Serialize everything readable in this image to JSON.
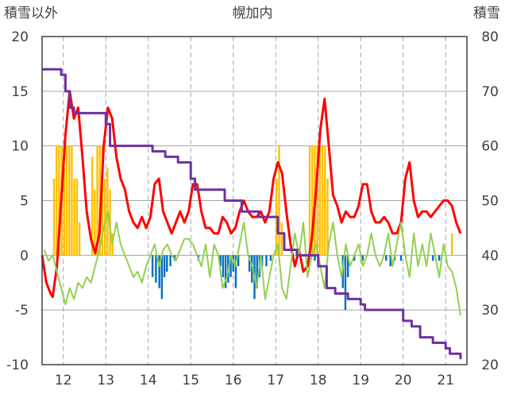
{
  "chart_data": {
    "type": "line",
    "title": "幌加内",
    "left_axis": {
      "label": "積雪以外",
      "min": -10,
      "max": 20,
      "ticks": [
        20,
        15,
        10,
        5,
        0,
        -5,
        -10
      ]
    },
    "right_axis": {
      "label": "積雪",
      "min": 20,
      "max": 80,
      "ticks": [
        80,
        70,
        60,
        50,
        40,
        30,
        20
      ]
    },
    "x_axis": {
      "min": 11.5,
      "max": 21.5,
      "ticks": [
        "12",
        "13",
        "14",
        "15",
        "16",
        "17",
        "18",
        "19",
        "20",
        "21"
      ]
    },
    "grid": {
      "horizontal": "solid",
      "vertical": "dashed"
    },
    "colors": {
      "temperature_line": "#ff0000",
      "green_line": "#92d050",
      "snow_depth_line": "#7030a0",
      "orange_bars": "#ffc000",
      "blue_bars": "#0070c0",
      "grid": "#a6a6a6",
      "frame": "#404040"
    },
    "series": [
      {
        "axis": "left",
        "kind": "line",
        "color_key": "temperature_line",
        "points": [
          [
            11.5,
            0
          ],
          [
            11.6,
            -2.5
          ],
          [
            11.7,
            -3.5
          ],
          [
            11.75,
            -3.8
          ],
          [
            11.85,
            -1
          ],
          [
            11.95,
            5
          ],
          [
            12.05,
            11
          ],
          [
            12.15,
            15
          ],
          [
            12.25,
            12.5
          ],
          [
            12.35,
            13.5
          ],
          [
            12.45,
            9
          ],
          [
            12.55,
            4
          ],
          [
            12.65,
            1.5
          ],
          [
            12.75,
            0.2
          ],
          [
            12.85,
            2
          ],
          [
            12.95,
            10
          ],
          [
            13.05,
            13.5
          ],
          [
            13.15,
            12.5
          ],
          [
            13.25,
            9
          ],
          [
            13.35,
            7
          ],
          [
            13.45,
            6
          ],
          [
            13.55,
            4
          ],
          [
            13.65,
            3
          ],
          [
            13.75,
            2.5
          ],
          [
            13.85,
            3.5
          ],
          [
            13.95,
            2.5
          ],
          [
            14.05,
            3.5
          ],
          [
            14.15,
            6.5
          ],
          [
            14.25,
            7
          ],
          [
            14.35,
            4
          ],
          [
            14.45,
            3
          ],
          [
            14.55,
            2
          ],
          [
            14.65,
            3
          ],
          [
            14.75,
            4
          ],
          [
            14.85,
            3
          ],
          [
            14.95,
            4
          ],
          [
            15.05,
            6.5
          ],
          [
            15.15,
            6.5
          ],
          [
            15.25,
            4
          ],
          [
            15.35,
            2.5
          ],
          [
            15.45,
            2.5
          ],
          [
            15.55,
            2
          ],
          [
            15.65,
            2
          ],
          [
            15.75,
            3.5
          ],
          [
            15.85,
            3
          ],
          [
            15.95,
            2
          ],
          [
            16.05,
            2.5
          ],
          [
            16.15,
            4
          ],
          [
            16.25,
            5
          ],
          [
            16.35,
            4
          ],
          [
            16.45,
            3.5
          ],
          [
            16.55,
            3.5
          ],
          [
            16.65,
            4
          ],
          [
            16.75,
            3
          ],
          [
            16.85,
            4
          ],
          [
            16.95,
            7
          ],
          [
            17.05,
            8.5
          ],
          [
            17.15,
            7.5
          ],
          [
            17.25,
            4
          ],
          [
            17.35,
            1
          ],
          [
            17.45,
            -1
          ],
          [
            17.55,
            0.5
          ],
          [
            17.65,
            -1.5
          ],
          [
            17.75,
            -1
          ],
          [
            17.85,
            1.5
          ],
          [
            17.95,
            6
          ],
          [
            18.05,
            11.5
          ],
          [
            18.15,
            14.3
          ],
          [
            18.25,
            10
          ],
          [
            18.35,
            5.5
          ],
          [
            18.45,
            4.5
          ],
          [
            18.55,
            3
          ],
          [
            18.65,
            4
          ],
          [
            18.75,
            3.5
          ],
          [
            18.85,
            3.5
          ],
          [
            18.95,
            4.5
          ],
          [
            19.05,
            6.5
          ],
          [
            19.15,
            6.5
          ],
          [
            19.25,
            4
          ],
          [
            19.35,
            3
          ],
          [
            19.45,
            3
          ],
          [
            19.55,
            3.5
          ],
          [
            19.65,
            3
          ],
          [
            19.75,
            2
          ],
          [
            19.85,
            2
          ],
          [
            19.95,
            3
          ],
          [
            20.05,
            7
          ],
          [
            20.15,
            8.5
          ],
          [
            20.25,
            5
          ],
          [
            20.35,
            3.5
          ],
          [
            20.45,
            4
          ],
          [
            20.55,
            4
          ],
          [
            20.65,
            3.5
          ],
          [
            20.75,
            4
          ],
          [
            20.85,
            4.5
          ],
          [
            20.95,
            5
          ],
          [
            21.05,
            5
          ],
          [
            21.15,
            4.5
          ],
          [
            21.25,
            3
          ],
          [
            21.35,
            2
          ]
        ]
      },
      {
        "axis": "left",
        "kind": "line",
        "color_key": "green_line",
        "points": [
          [
            11.55,
            0.5
          ],
          [
            11.65,
            -0.5
          ],
          [
            11.75,
            0
          ],
          [
            11.85,
            -1.5
          ],
          [
            11.95,
            -3
          ],
          [
            12.05,
            -4.5
          ],
          [
            12.15,
            -3
          ],
          [
            12.25,
            -4
          ],
          [
            12.35,
            -2.5
          ],
          [
            12.45,
            -3
          ],
          [
            12.55,
            -2
          ],
          [
            12.65,
            -2.5
          ],
          [
            12.75,
            -1
          ],
          [
            12.85,
            0.5
          ],
          [
            12.95,
            2.5
          ],
          [
            13.05,
            4
          ],
          [
            13.15,
            1
          ],
          [
            13.25,
            3
          ],
          [
            13.35,
            1
          ],
          [
            13.45,
            0
          ],
          [
            13.55,
            -1
          ],
          [
            13.65,
            -2
          ],
          [
            13.75,
            -1.5
          ],
          [
            13.85,
            -2.5
          ],
          [
            13.95,
            -1
          ],
          [
            14.05,
            0
          ],
          [
            14.15,
            1
          ],
          [
            14.25,
            -1
          ],
          [
            14.35,
            0.5
          ],
          [
            14.45,
            1
          ],
          [
            14.55,
            0
          ],
          [
            14.65,
            -0.5
          ],
          [
            14.75,
            0.5
          ],
          [
            14.85,
            1.5
          ],
          [
            14.95,
            1.5
          ],
          [
            15.05,
            1
          ],
          [
            15.15,
            0
          ],
          [
            15.25,
            -1
          ],
          [
            15.35,
            1
          ],
          [
            15.45,
            -2
          ],
          [
            15.55,
            1
          ],
          [
            15.65,
            0
          ],
          [
            15.75,
            -3
          ],
          [
            15.85,
            -2
          ],
          [
            15.95,
            0
          ],
          [
            16.05,
            -1
          ],
          [
            16.15,
            1
          ],
          [
            16.25,
            3
          ],
          [
            16.35,
            0
          ],
          [
            16.45,
            -1
          ],
          [
            16.55,
            -3
          ],
          [
            16.65,
            0
          ],
          [
            16.75,
            -4
          ],
          [
            16.85,
            -2
          ],
          [
            16.95,
            0
          ],
          [
            17.05,
            1
          ],
          [
            17.15,
            -3
          ],
          [
            17.25,
            -4
          ],
          [
            17.35,
            -1
          ],
          [
            17.45,
            2
          ],
          [
            17.55,
            0
          ],
          [
            17.65,
            3
          ],
          [
            17.75,
            -2
          ],
          [
            17.85,
            0
          ],
          [
            17.95,
            1
          ],
          [
            18.05,
            -1
          ],
          [
            18.15,
            -3
          ],
          [
            18.25,
            1
          ],
          [
            18.35,
            3
          ],
          [
            18.45,
            0
          ],
          [
            18.55,
            -2
          ],
          [
            18.65,
            1
          ],
          [
            18.75,
            -1
          ],
          [
            18.85,
            0
          ],
          [
            18.95,
            1
          ],
          [
            19.05,
            -1
          ],
          [
            19.15,
            0
          ],
          [
            19.25,
            2
          ],
          [
            19.35,
            0
          ],
          [
            19.45,
            -1
          ],
          [
            19.55,
            0
          ],
          [
            19.65,
            2
          ],
          [
            19.75,
            -1
          ],
          [
            19.85,
            1
          ],
          [
            19.95,
            3
          ],
          [
            20.05,
            0
          ],
          [
            20.15,
            -2
          ],
          [
            20.25,
            2
          ],
          [
            20.35,
            -1
          ],
          [
            20.45,
            1
          ],
          [
            20.55,
            -1
          ],
          [
            20.65,
            2
          ],
          [
            20.75,
            0
          ],
          [
            20.85,
            -2
          ],
          [
            20.95,
            1
          ],
          [
            21.05,
            -1
          ],
          [
            21.15,
            -1.5
          ],
          [
            21.25,
            -3
          ],
          [
            21.35,
            -5.5
          ]
        ]
      },
      {
        "axis": "right",
        "kind": "step",
        "color_key": "snow_depth_line",
        "points": [
          [
            11.5,
            74
          ],
          [
            11.8,
            74
          ],
          [
            11.95,
            73
          ],
          [
            12.05,
            70
          ],
          [
            12.15,
            67
          ],
          [
            12.25,
            66
          ],
          [
            12.9,
            66
          ],
          [
            13.0,
            64
          ],
          [
            13.1,
            60
          ],
          [
            14.0,
            60
          ],
          [
            14.1,
            59
          ],
          [
            14.4,
            58
          ],
          [
            14.7,
            57
          ],
          [
            15.0,
            54
          ],
          [
            15.1,
            52
          ],
          [
            15.5,
            52
          ],
          [
            15.8,
            50
          ],
          [
            16.2,
            48
          ],
          [
            16.6,
            47
          ],
          [
            16.9,
            47
          ],
          [
            17.05,
            44
          ],
          [
            17.2,
            41
          ],
          [
            17.5,
            40
          ],
          [
            17.9,
            40
          ],
          [
            18.0,
            38
          ],
          [
            18.2,
            34
          ],
          [
            18.4,
            33
          ],
          [
            18.7,
            32
          ],
          [
            19.0,
            31
          ],
          [
            19.1,
            30
          ],
          [
            19.8,
            30
          ],
          [
            20.0,
            28
          ],
          [
            20.2,
            27
          ],
          [
            20.4,
            25
          ],
          [
            20.7,
            24
          ],
          [
            21.0,
            23
          ],
          [
            21.1,
            22
          ],
          [
            21.35,
            21
          ]
        ]
      },
      {
        "axis": "left",
        "kind": "bars",
        "color_key": "orange_bars",
        "points": [
          [
            11.78,
            7
          ],
          [
            11.84,
            10
          ],
          [
            11.9,
            10
          ],
          [
            11.96,
            10
          ],
          [
            12.02,
            8
          ],
          [
            12.08,
            10
          ],
          [
            12.14,
            10
          ],
          [
            12.2,
            10
          ],
          [
            12.26,
            7
          ],
          [
            12.32,
            7
          ],
          [
            12.38,
            3
          ],
          [
            12.68,
            9
          ],
          [
            12.74,
            6
          ],
          [
            12.8,
            10
          ],
          [
            12.86,
            10
          ],
          [
            12.92,
            10
          ],
          [
            12.98,
            7
          ],
          [
            13.04,
            8
          ],
          [
            13.1,
            6
          ],
          [
            13.16,
            2
          ],
          [
            17.02,
            7
          ],
          [
            17.08,
            10
          ],
          [
            17.14,
            3
          ],
          [
            17.8,
            10
          ],
          [
            17.86,
            10
          ],
          [
            17.92,
            10
          ],
          [
            17.98,
            10
          ],
          [
            18.04,
            10
          ],
          [
            18.1,
            10
          ],
          [
            18.16,
            10
          ],
          [
            18.22,
            7
          ],
          [
            21.15,
            2
          ]
        ]
      },
      {
        "axis": "left",
        "kind": "bars",
        "color_key": "blue_bars",
        "points": [
          [
            14.1,
            -2
          ],
          [
            14.18,
            -2.5
          ],
          [
            14.26,
            -3
          ],
          [
            14.32,
            -4
          ],
          [
            14.38,
            -2
          ],
          [
            14.44,
            -1.5
          ],
          [
            14.52,
            -1
          ],
          [
            14.62,
            -0.5
          ],
          [
            15.18,
            -0.5
          ],
          [
            15.7,
            -1
          ],
          [
            15.76,
            -2
          ],
          [
            15.82,
            -3
          ],
          [
            15.88,
            -2.5
          ],
          [
            15.94,
            -2
          ],
          [
            16.0,
            -1.5
          ],
          [
            16.06,
            -3
          ],
          [
            16.12,
            -1
          ],
          [
            16.38,
            -1.5
          ],
          [
            16.44,
            -2.5
          ],
          [
            16.5,
            -4
          ],
          [
            16.56,
            -3
          ],
          [
            16.62,
            -2
          ],
          [
            16.68,
            -1
          ],
          [
            16.78,
            -1
          ],
          [
            16.88,
            -0.5
          ],
          [
            17.92,
            -0.5
          ],
          [
            18.58,
            -3
          ],
          [
            18.64,
            -5
          ],
          [
            18.7,
            -2
          ],
          [
            18.85,
            -0.5
          ],
          [
            19.05,
            -0.5
          ],
          [
            19.6,
            -0.5
          ],
          [
            19.7,
            -1
          ],
          [
            19.8,
            -0.5
          ],
          [
            19.95,
            -0.5
          ],
          [
            20.7,
            -0.5
          ],
          [
            20.85,
            -0.5
          ]
        ]
      }
    ]
  }
}
